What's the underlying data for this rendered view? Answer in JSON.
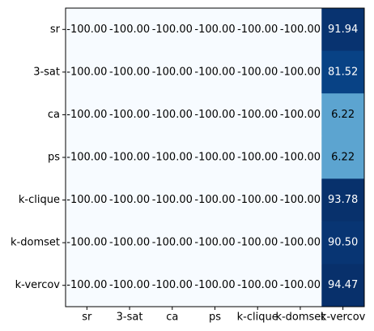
{
  "chart_data": {
    "type": "heatmap",
    "x_categories": [
      "sr",
      "3-sat",
      "ca",
      "ps",
      "k-clique",
      "k-domset",
      "k-vercov"
    ],
    "y_categories": [
      "sr",
      "3-sat",
      "ca",
      "ps",
      "k-clique",
      "k-domset",
      "k-vercov"
    ],
    "values": [
      [
        -100.0,
        -100.0,
        -100.0,
        -100.0,
        -100.0,
        -100.0,
        91.94
      ],
      [
        -100.0,
        -100.0,
        -100.0,
        -100.0,
        -100.0,
        -100.0,
        81.52
      ],
      [
        -100.0,
        -100.0,
        -100.0,
        -100.0,
        -100.0,
        -100.0,
        6.22
      ],
      [
        -100.0,
        -100.0,
        -100.0,
        -100.0,
        -100.0,
        -100.0,
        6.22
      ],
      [
        -100.0,
        -100.0,
        -100.0,
        -100.0,
        -100.0,
        -100.0,
        93.78
      ],
      [
        -100.0,
        -100.0,
        -100.0,
        -100.0,
        -100.0,
        -100.0,
        90.5
      ],
      [
        -100.0,
        -100.0,
        -100.0,
        -100.0,
        -100.0,
        -100.0,
        94.47
      ]
    ],
    "value_format_decimals": 2,
    "colormap": "Blues",
    "vmin": -100.0,
    "vmax": 94.47,
    "grid": false,
    "legend": "none"
  }
}
